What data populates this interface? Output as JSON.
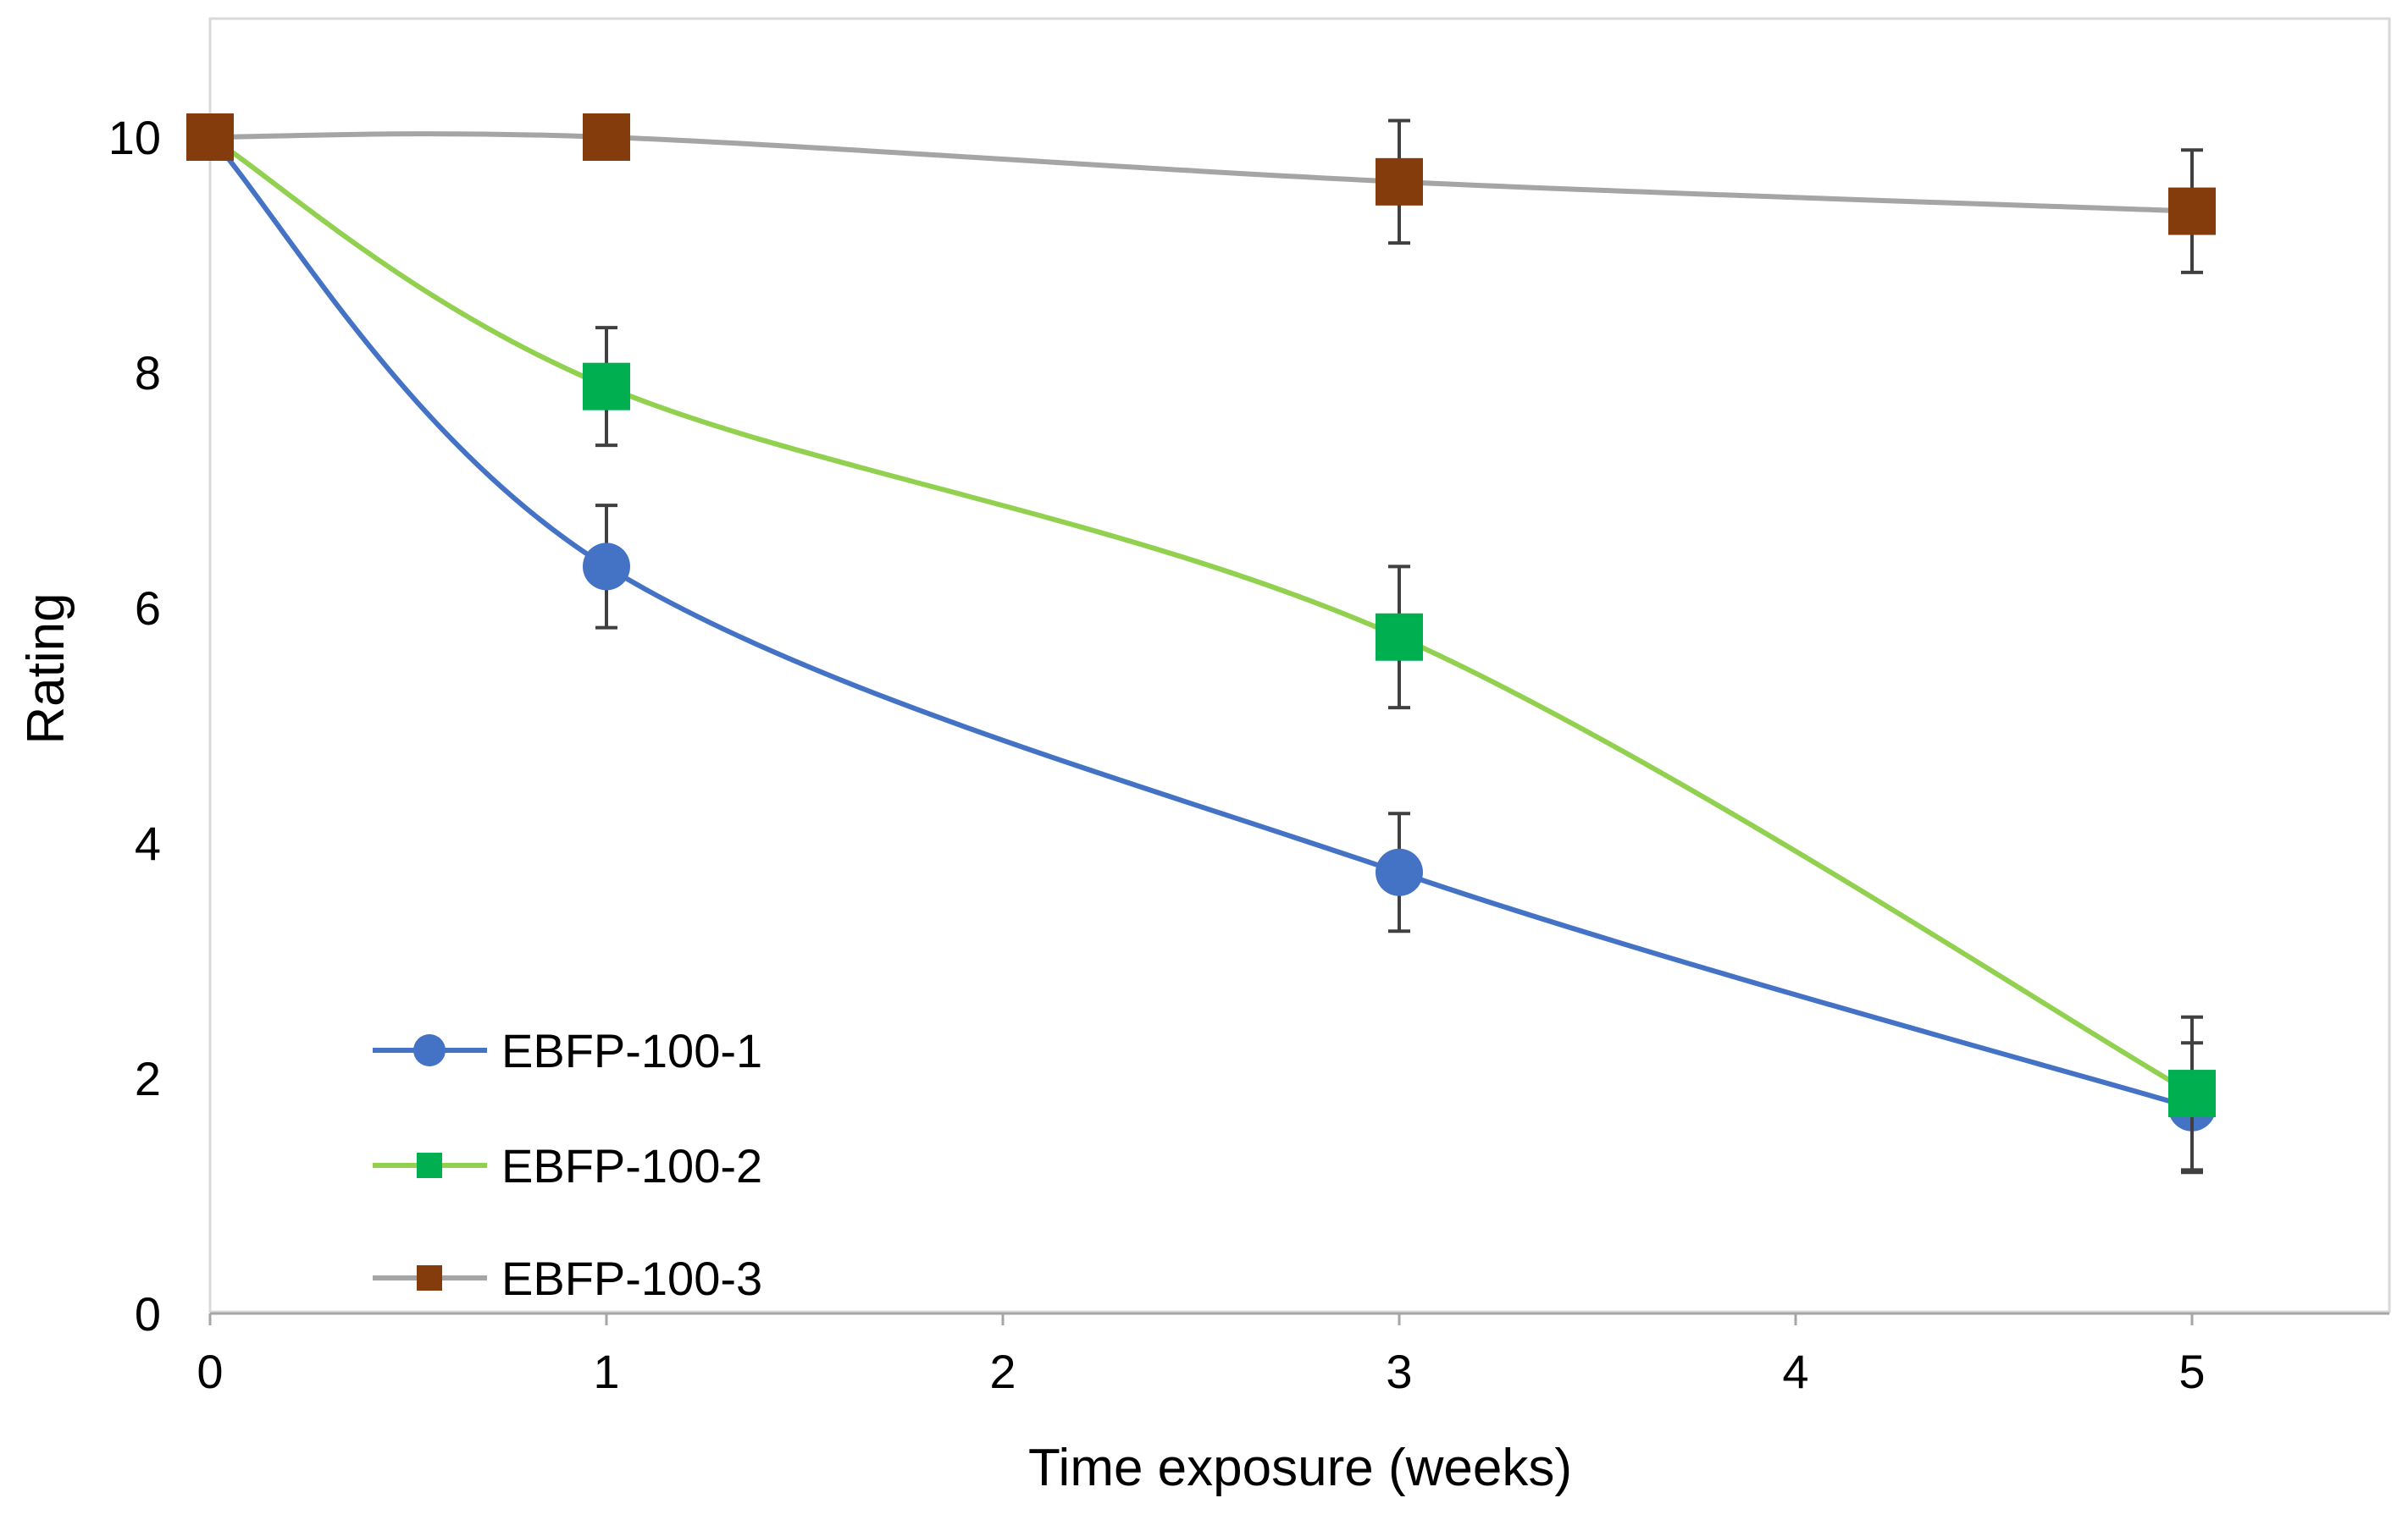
{
  "chart_data": {
    "type": "line",
    "title": "",
    "xlabel": "Time exposure (weeks)",
    "ylabel": "Rating",
    "xlim": [
      0,
      5.5
    ],
    "ylim": [
      0,
      11
    ],
    "x_ticks": [
      0,
      1,
      2,
      3,
      4,
      5
    ],
    "y_ticks": [
      0,
      2,
      4,
      6,
      8,
      10
    ],
    "grid": false,
    "legend_position": "bottom-left",
    "x": [
      0,
      1,
      3,
      5
    ],
    "series": [
      {
        "name": "EBFP-100-1",
        "marker": "circle",
        "line_color": "#4472C4",
        "marker_color": "#4472C4",
        "values": [
          10,
          6.35,
          3.75,
          1.75
        ],
        "errors": [
          0,
          0.52,
          0.5,
          0.55
        ]
      },
      {
        "name": "EBFP-100-2",
        "marker": "square",
        "line_color": "#92D050",
        "marker_color": "#00B050",
        "values": [
          10,
          7.88,
          5.75,
          1.87
        ],
        "errors": [
          0,
          0.5,
          0.6,
          0.65
        ]
      },
      {
        "name": "EBFP-100-3",
        "marker": "square",
        "line_color": "#A5A5A5",
        "marker_color": "#843C0C",
        "values": [
          10,
          10,
          9.62,
          9.37
        ],
        "errors": [
          0,
          0,
          0.52,
          0.52
        ]
      }
    ]
  }
}
